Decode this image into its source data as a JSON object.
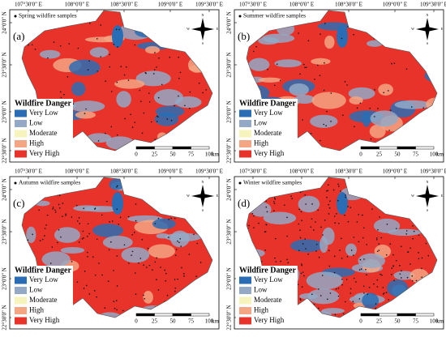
{
  "lon_labels": [
    "107°30'0\" E",
    "108°0'0\" E",
    "108°30'0\" E",
    "109°0'0\" E",
    "109°30'0\" E"
  ],
  "lat_labels": [
    "24°0'0\" N",
    "23°30'0\" N",
    "23°0'0\" N",
    "22°30'0\" N"
  ],
  "legend": {
    "title": "Wildfire Danger",
    "items": [
      {
        "label": "Very Low",
        "color": "#2a6db4"
      },
      {
        "label": "Low",
        "color": "#93a9c6"
      },
      {
        "label": "Moderate",
        "color": "#f7f3bd"
      },
      {
        "label": "High",
        "color": "#f4a583"
      },
      {
        "label": "Very High",
        "color": "#e8332b"
      }
    ]
  },
  "scale": {
    "ticks": [
      "0",
      "25",
      "50",
      "75",
      "100"
    ],
    "unit": "km"
  },
  "compass": [
    "N",
    "E",
    "S",
    "W"
  ],
  "panels": [
    {
      "label": "(a)",
      "samples": "Spring wildfire samples"
    },
    {
      "label": "(b)",
      "samples": "Summer wildfire samples"
    },
    {
      "label": "(c)",
      "samples": "Autumn wildfire samples"
    },
    {
      "label": "(d)",
      "samples": "Winter wildfire samples"
    }
  ]
}
